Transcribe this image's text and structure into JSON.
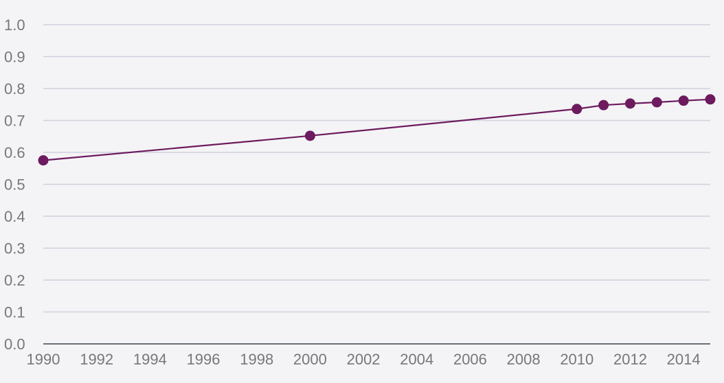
{
  "chart_data": {
    "type": "line",
    "title": "",
    "xlabel": "",
    "ylabel": "",
    "xlim": [
      1990,
      2015
    ],
    "ylim": [
      0,
      1.0
    ],
    "x_ticks": [
      "1990",
      "1992",
      "1994",
      "1996",
      "1998",
      "2000",
      "2002",
      "2004",
      "2006",
      "2008",
      "2010",
      "2012",
      "2014"
    ],
    "y_ticks": [
      "0.0",
      "0.1",
      "0.2",
      "0.3",
      "0.4",
      "0.5",
      "0.6",
      "0.7",
      "0.8",
      "0.9",
      "1.0"
    ],
    "grid": true,
    "legend": "none",
    "series": [
      {
        "color": "#6d1a5e",
        "x": [
          1990,
          2000,
          2010,
          2011,
          2012,
          2013,
          2014,
          2015
        ],
        "y": [
          0.575,
          0.652,
          0.736,
          0.748,
          0.753,
          0.757,
          0.762,
          0.766
        ]
      }
    ]
  }
}
